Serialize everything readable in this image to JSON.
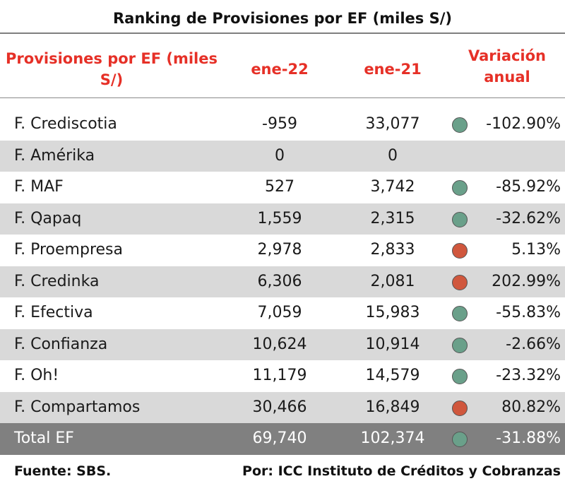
{
  "title": "Ranking de Provisiones por EF (miles S/)",
  "headers": {
    "name": "Provisiones por EF (miles S/)",
    "col1": "ene-22",
    "col2": "ene-21",
    "variation": "Variación anual"
  },
  "colors": {
    "header_text": "#e63027",
    "down_indicator": "#6aa08a",
    "up_indicator": "#d0573d",
    "alt_row": "#d9d9d9",
    "total_row": "#808080"
  },
  "rows": [
    {
      "name": "F. Crediscotia",
      "ene22": "-959",
      "ene21": "33,077",
      "indicator": "down",
      "variation": "-102.90%"
    },
    {
      "name": "F. Amérika",
      "ene22": "0",
      "ene21": "0",
      "indicator": "none",
      "variation": ""
    },
    {
      "name": "F. MAF",
      "ene22": "527",
      "ene21": "3,742",
      "indicator": "down",
      "variation": "-85.92%"
    },
    {
      "name": "F. Qapaq",
      "ene22": "1,559",
      "ene21": "2,315",
      "indicator": "down",
      "variation": "-32.62%"
    },
    {
      "name": "F. Proempresa",
      "ene22": "2,978",
      "ene21": "2,833",
      "indicator": "up",
      "variation": "5.13%"
    },
    {
      "name": "F. Credinka",
      "ene22": "6,306",
      "ene21": "2,081",
      "indicator": "up",
      "variation": "202.99%"
    },
    {
      "name": "F. Efectiva",
      "ene22": "7,059",
      "ene21": "15,983",
      "indicator": "down",
      "variation": "-55.83%"
    },
    {
      "name": "F. Confianza",
      "ene22": "10,624",
      "ene21": "10,914",
      "indicator": "down",
      "variation": "-2.66%"
    },
    {
      "name": "F. Oh!",
      "ene22": "11,179",
      "ene21": "14,579",
      "indicator": "down",
      "variation": "-23.32%"
    },
    {
      "name": "F. Compartamos",
      "ene22": "30,466",
      "ene21": "16,849",
      "indicator": "up",
      "variation": "80.82%"
    }
  ],
  "total": {
    "name": "Total EF",
    "ene22": "69,740",
    "ene21": "102,374",
    "indicator": "down",
    "variation": "-31.88%"
  },
  "footer": {
    "source": "Fuente: SBS.",
    "author": "Por: ICC Instituto de Créditos y Cobranzas"
  }
}
